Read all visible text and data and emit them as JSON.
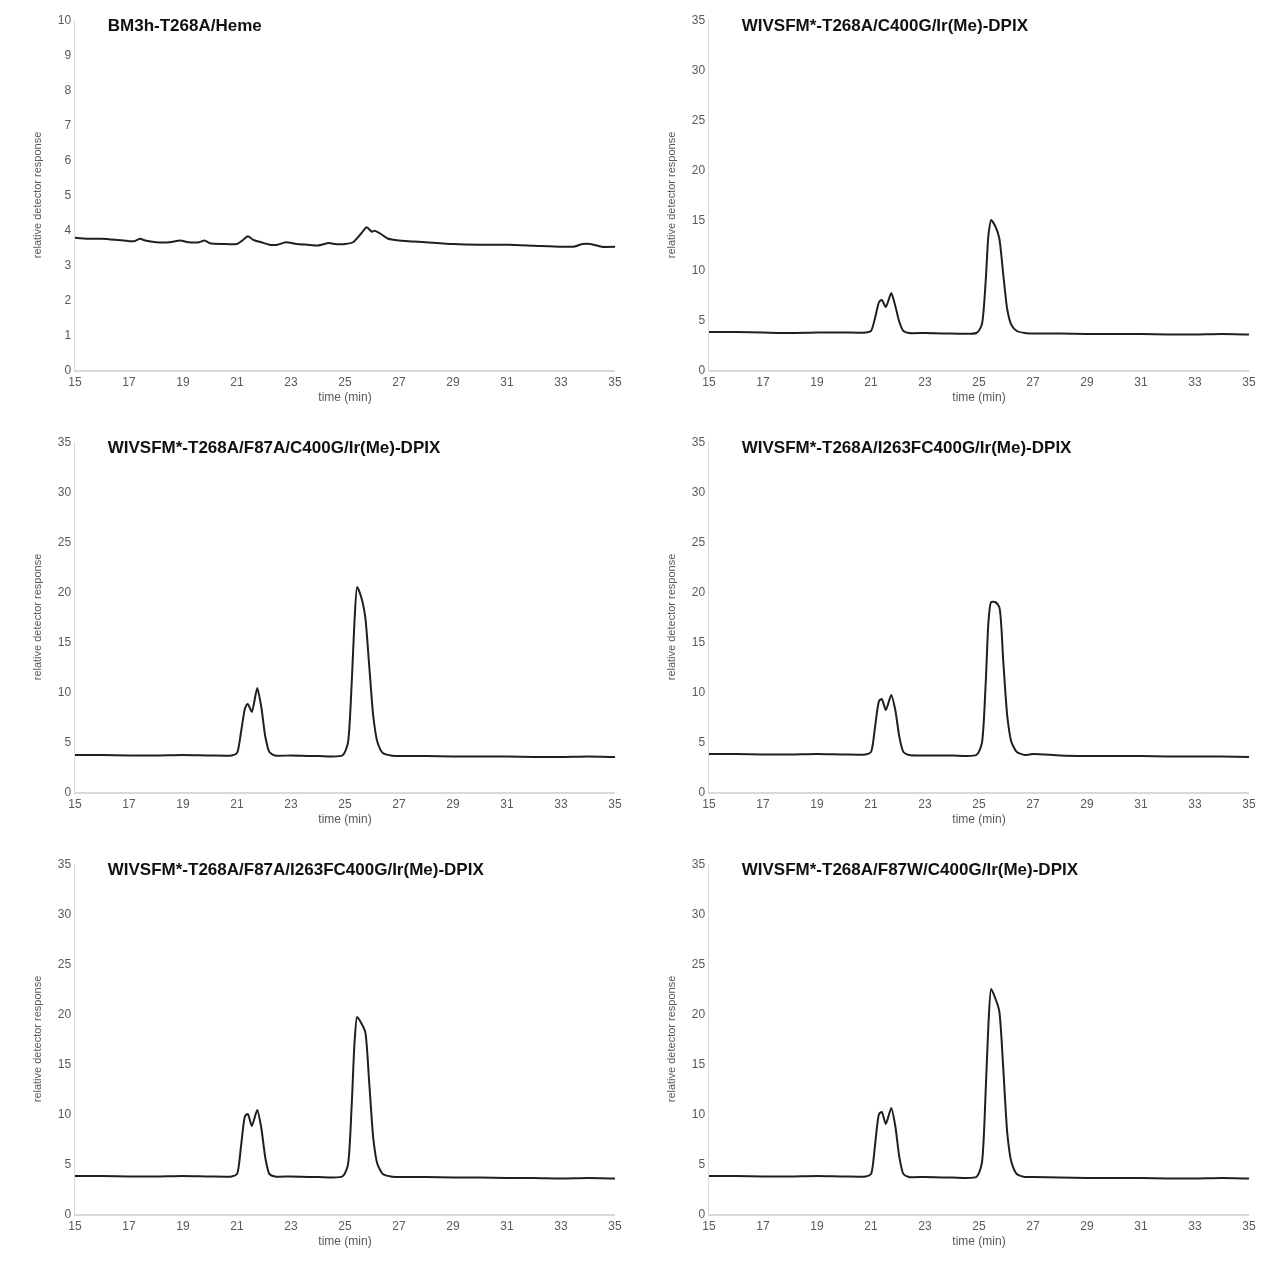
{
  "chart_data": [
    {
      "type": "line",
      "title": "BM3h-T268A/Heme",
      "xlabel": "time (min)",
      "ylabel": "relative detector response",
      "color": "#1f1f1f",
      "line_style": "solid",
      "xlim": [
        15,
        35
      ],
      "xticks": [
        15,
        17,
        19,
        21,
        23,
        25,
        27,
        29,
        31,
        33,
        35
      ],
      "ylim": [
        0,
        10
      ],
      "yticks": [
        0,
        1,
        2,
        3,
        4,
        5,
        6,
        7,
        8,
        9,
        10
      ],
      "x": [
        15,
        15.5,
        16,
        16.5,
        17,
        17.2,
        17.4,
        17.6,
        18,
        18.5,
        18.9,
        19.2,
        19.6,
        19.8,
        20,
        20.5,
        21,
        21.2,
        21.4,
        21.6,
        21.9,
        22.2,
        22.5,
        22.8,
        23.2,
        23.6,
        24,
        24.4,
        24.6,
        25,
        25.3,
        25.6,
        25.8,
        26,
        26.1,
        26.3,
        26.6,
        27,
        28,
        29,
        30,
        31,
        32,
        33,
        33.5,
        33.8,
        34.1,
        34.5,
        35
      ],
      "values": [
        3.78,
        3.75,
        3.75,
        3.72,
        3.68,
        3.68,
        3.75,
        3.7,
        3.65,
        3.65,
        3.7,
        3.65,
        3.65,
        3.7,
        3.62,
        3.6,
        3.6,
        3.7,
        3.82,
        3.72,
        3.65,
        3.58,
        3.58,
        3.65,
        3.6,
        3.58,
        3.56,
        3.63,
        3.6,
        3.6,
        3.65,
        3.9,
        4.08,
        3.95,
        3.98,
        3.9,
        3.75,
        3.7,
        3.65,
        3.6,
        3.58,
        3.58,
        3.55,
        3.52,
        3.53,
        3.6,
        3.6,
        3.52,
        3.52
      ]
    },
    {
      "type": "line",
      "title": "WIVSFM*-T268A/C400G/Ir(Me)-DPIX",
      "xlabel": "time (min)",
      "ylabel": "relative detector response",
      "color": "#1f1f1f",
      "line_style": "solid",
      "xlim": [
        15,
        35
      ],
      "xticks": [
        15,
        17,
        19,
        21,
        23,
        25,
        27,
        29,
        31,
        33,
        35
      ],
      "ylim": [
        0,
        35
      ],
      "yticks": [
        0,
        5,
        10,
        15,
        20,
        25,
        30,
        35
      ],
      "x": [
        15,
        16,
        17,
        18,
        19,
        20,
        20.8,
        21.0,
        21.15,
        21.3,
        21.4,
        21.55,
        21.75,
        21.9,
        22.05,
        22.2,
        22.4,
        23,
        24,
        24.9,
        25.1,
        25.25,
        25.35,
        25.45,
        25.6,
        25.75,
        25.9,
        26.05,
        26.2,
        26.4,
        26.7,
        27,
        28,
        29,
        30,
        31,
        32,
        33,
        34,
        35
      ],
      "values": [
        3.8,
        3.8,
        3.75,
        3.7,
        3.75,
        3.75,
        3.75,
        3.9,
        5.2,
        6.8,
        7.0,
        6.3,
        7.7,
        6.4,
        4.8,
        3.9,
        3.7,
        3.7,
        3.65,
        3.7,
        4.5,
        9,
        13.5,
        15,
        14.4,
        13.2,
        9.5,
        6,
        4.5,
        3.9,
        3.7,
        3.65,
        3.65,
        3.6,
        3.6,
        3.6,
        3.55,
        3.55,
        3.6,
        3.55
      ]
    },
    {
      "type": "line",
      "title": "WIVSFM*-T268A/F87A/C400G/Ir(Me)-DPIX",
      "xlabel": "time (min)",
      "ylabel": "relative detector response",
      "color": "#1f1f1f",
      "line_style": "solid",
      "xlim": [
        15,
        35
      ],
      "xticks": [
        15,
        17,
        19,
        21,
        23,
        25,
        27,
        29,
        31,
        33,
        35
      ],
      "ylim": [
        0,
        35
      ],
      "yticks": [
        0,
        5,
        10,
        15,
        20,
        25,
        30,
        35
      ],
      "x": [
        15,
        16,
        17,
        18,
        19,
        20,
        20.8,
        21.0,
        21.15,
        21.3,
        21.4,
        21.55,
        21.75,
        21.9,
        22.05,
        22.2,
        22.4,
        23,
        24,
        24.9,
        25.1,
        25.25,
        25.35,
        25.45,
        25.6,
        25.75,
        25.9,
        26.05,
        26.2,
        26.4,
        26.7,
        27,
        28,
        29,
        30,
        31,
        32,
        33,
        34,
        35
      ],
      "values": [
        3.7,
        3.7,
        3.65,
        3.65,
        3.7,
        3.65,
        3.65,
        3.9,
        6,
        8.4,
        8.8,
        8.0,
        10.4,
        8.5,
        5.5,
        4,
        3.65,
        3.65,
        3.6,
        3.65,
        4.8,
        11,
        17,
        20.5,
        19.5,
        17.5,
        12.5,
        7.5,
        5,
        3.9,
        3.65,
        3.6,
        3.6,
        3.55,
        3.55,
        3.55,
        3.5,
        3.5,
        3.55,
        3.5
      ]
    },
    {
      "type": "line",
      "title": "WIVSFM*-T268A/I263FC400G/Ir(Me)-DPIX",
      "xlabel": "time (min)",
      "ylabel": "relative detector response",
      "color": "#1f1f1f",
      "line_style": "solid",
      "xlim": [
        15,
        35
      ],
      "xticks": [
        15,
        17,
        19,
        21,
        23,
        25,
        27,
        29,
        31,
        33,
        35
      ],
      "ylim": [
        0,
        35
      ],
      "yticks": [
        0,
        5,
        10,
        15,
        20,
        25,
        30,
        35
      ],
      "x": [
        15,
        16,
        17,
        18,
        19,
        20,
        20.8,
        21.0,
        21.15,
        21.3,
        21.4,
        21.55,
        21.75,
        21.9,
        22.05,
        22.2,
        22.4,
        23,
        24,
        24.9,
        25.1,
        25.25,
        25.35,
        25.45,
        25.6,
        25.75,
        25.9,
        26.05,
        26.2,
        26.4,
        26.7,
        27,
        28,
        29,
        30,
        31,
        32,
        33,
        34,
        35
      ],
      "values": [
        3.8,
        3.8,
        3.75,
        3.75,
        3.8,
        3.75,
        3.75,
        4,
        6.5,
        9.1,
        9.3,
        8.2,
        9.7,
        8.2,
        5.5,
        4,
        3.7,
        3.65,
        3.65,
        3.7,
        4.8,
        11,
        17,
        19,
        19,
        18.5,
        13,
        7.5,
        5,
        4,
        3.7,
        3.8,
        3.65,
        3.6,
        3.6,
        3.6,
        3.55,
        3.55,
        3.55,
        3.5
      ]
    },
    {
      "type": "line",
      "title": "WIVSFM*-T268A/F87A/I263FC400G/Ir(Me)-DPIX",
      "xlabel": "time (min)",
      "ylabel": "relative detector response",
      "color": "#1f1f1f",
      "line_style": "solid",
      "xlim": [
        15,
        35
      ],
      "xticks": [
        15,
        17,
        19,
        21,
        23,
        25,
        27,
        29,
        31,
        33,
        35
      ],
      "ylim": [
        0,
        35
      ],
      "yticks": [
        0,
        5,
        10,
        15,
        20,
        25,
        30,
        35
      ],
      "x": [
        15,
        16,
        17,
        18,
        19,
        20,
        20.8,
        21.0,
        21.15,
        21.3,
        21.4,
        21.55,
        21.75,
        21.9,
        22.05,
        22.2,
        22.4,
        23,
        24,
        24.9,
        25.1,
        25.25,
        25.35,
        25.45,
        25.6,
        25.75,
        25.9,
        26.05,
        26.2,
        26.4,
        26.7,
        27,
        28,
        29,
        30,
        31,
        32,
        33,
        34,
        35
      ],
      "values": [
        3.8,
        3.8,
        3.75,
        3.75,
        3.8,
        3.75,
        3.75,
        4,
        6.8,
        9.8,
        10.0,
        8.8,
        10.4,
        8.6,
        5.6,
        4,
        3.75,
        3.75,
        3.7,
        3.75,
        4.8,
        11,
        17,
        19.7,
        19.1,
        18.2,
        13,
        7.5,
        5,
        4,
        3.75,
        3.7,
        3.7,
        3.65,
        3.65,
        3.6,
        3.6,
        3.55,
        3.6,
        3.55
      ]
    },
    {
      "type": "line",
      "title": "WIVSFM*-T268A/F87W/C400G/Ir(Me)-DPIX",
      "xlabel": "time (min)",
      "ylabel": "relative detector response",
      "color": "#1f1f1f",
      "line_style": "solid",
      "xlim": [
        15,
        35
      ],
      "xticks": [
        15,
        17,
        19,
        21,
        23,
        25,
        27,
        29,
        31,
        33,
        35
      ],
      "ylim": [
        0,
        35
      ],
      "yticks": [
        0,
        5,
        10,
        15,
        20,
        25,
        30,
        35
      ],
      "x": [
        15,
        16,
        17,
        18,
        19,
        20,
        20.8,
        21.0,
        21.15,
        21.3,
        21.4,
        21.55,
        21.75,
        21.9,
        22.05,
        22.2,
        22.4,
        23,
        24,
        24.9,
        25.1,
        25.25,
        25.35,
        25.45,
        25.6,
        25.75,
        25.9,
        26.05,
        26.2,
        26.4,
        26.7,
        27,
        28,
        29,
        30,
        31,
        32,
        33,
        34,
        35
      ],
      "values": [
        3.8,
        3.8,
        3.75,
        3.75,
        3.8,
        3.75,
        3.75,
        4,
        6.9,
        10,
        10.2,
        9.0,
        10.6,
        8.8,
        5.7,
        4,
        3.7,
        3.7,
        3.65,
        3.7,
        5,
        12.5,
        19,
        22.5,
        21.6,
        20.3,
        14.5,
        8,
        5.2,
        4,
        3.7,
        3.7,
        3.65,
        3.6,
        3.6,
        3.6,
        3.55,
        3.55,
        3.6,
        3.55
      ]
    }
  ]
}
